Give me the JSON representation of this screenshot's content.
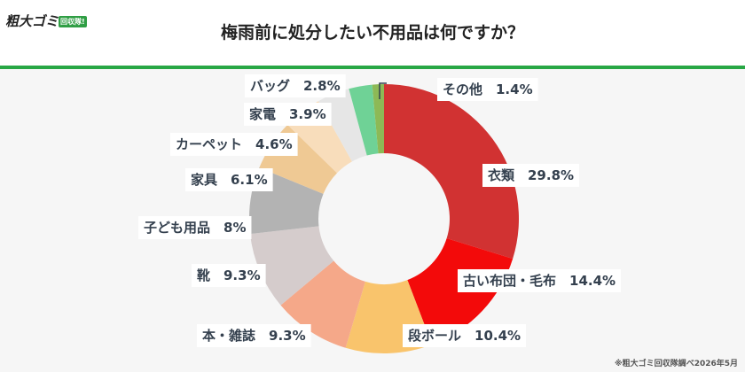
{
  "brand": {
    "tagline": "粗大ゴミ回収隊",
    "name": "粗大ゴミ",
    "badge": "回収隊!"
  },
  "title": "梅雨前に処分したい不用品は何ですか？",
  "source": "※粗大ゴミ回収隊調べ2026年5月",
  "chart_data": {
    "type": "pie",
    "donut": true,
    "title": "梅雨前に処分したい不用品は何ですか？",
    "unit": "%",
    "slices": [
      {
        "label": "衣類",
        "value": 29.8,
        "value_text": "29.8%",
        "color": "#d13232"
      },
      {
        "label": "古い布団・毛布",
        "value": 14.4,
        "value_text": "14.4%",
        "color": "#f30a0a"
      },
      {
        "label": "段ボール",
        "value": 10.4,
        "value_text": "10.4%",
        "color": "#f9c46c"
      },
      {
        "label": "本・雑誌",
        "value": 9.3,
        "value_text": "9.3%",
        "color": "#f5a889"
      },
      {
        "label": "靴",
        "value": 9.3,
        "value_text": "9.3%",
        "color": "#d5cccc"
      },
      {
        "label": "子ども用品",
        "value": 8,
        "value_text": "8%",
        "color": "#b3b3b3"
      },
      {
        "label": "家具",
        "value": 6.1,
        "value_text": "6.1%",
        "color": "#efc994"
      },
      {
        "label": "カーペット",
        "value": 4.6,
        "value_text": "4.6%",
        "color": "#f8ddbb"
      },
      {
        "label": "家電",
        "value": 3.9,
        "value_text": "3.9%",
        "color": "#e6e6e6"
      },
      {
        "label": "バッグ",
        "value": 2.8,
        "value_text": "2.8%",
        "color": "#6fd296"
      },
      {
        "label": "その他",
        "value": 1.4,
        "value_text": "1.4%",
        "color": "#8db956"
      }
    ]
  }
}
